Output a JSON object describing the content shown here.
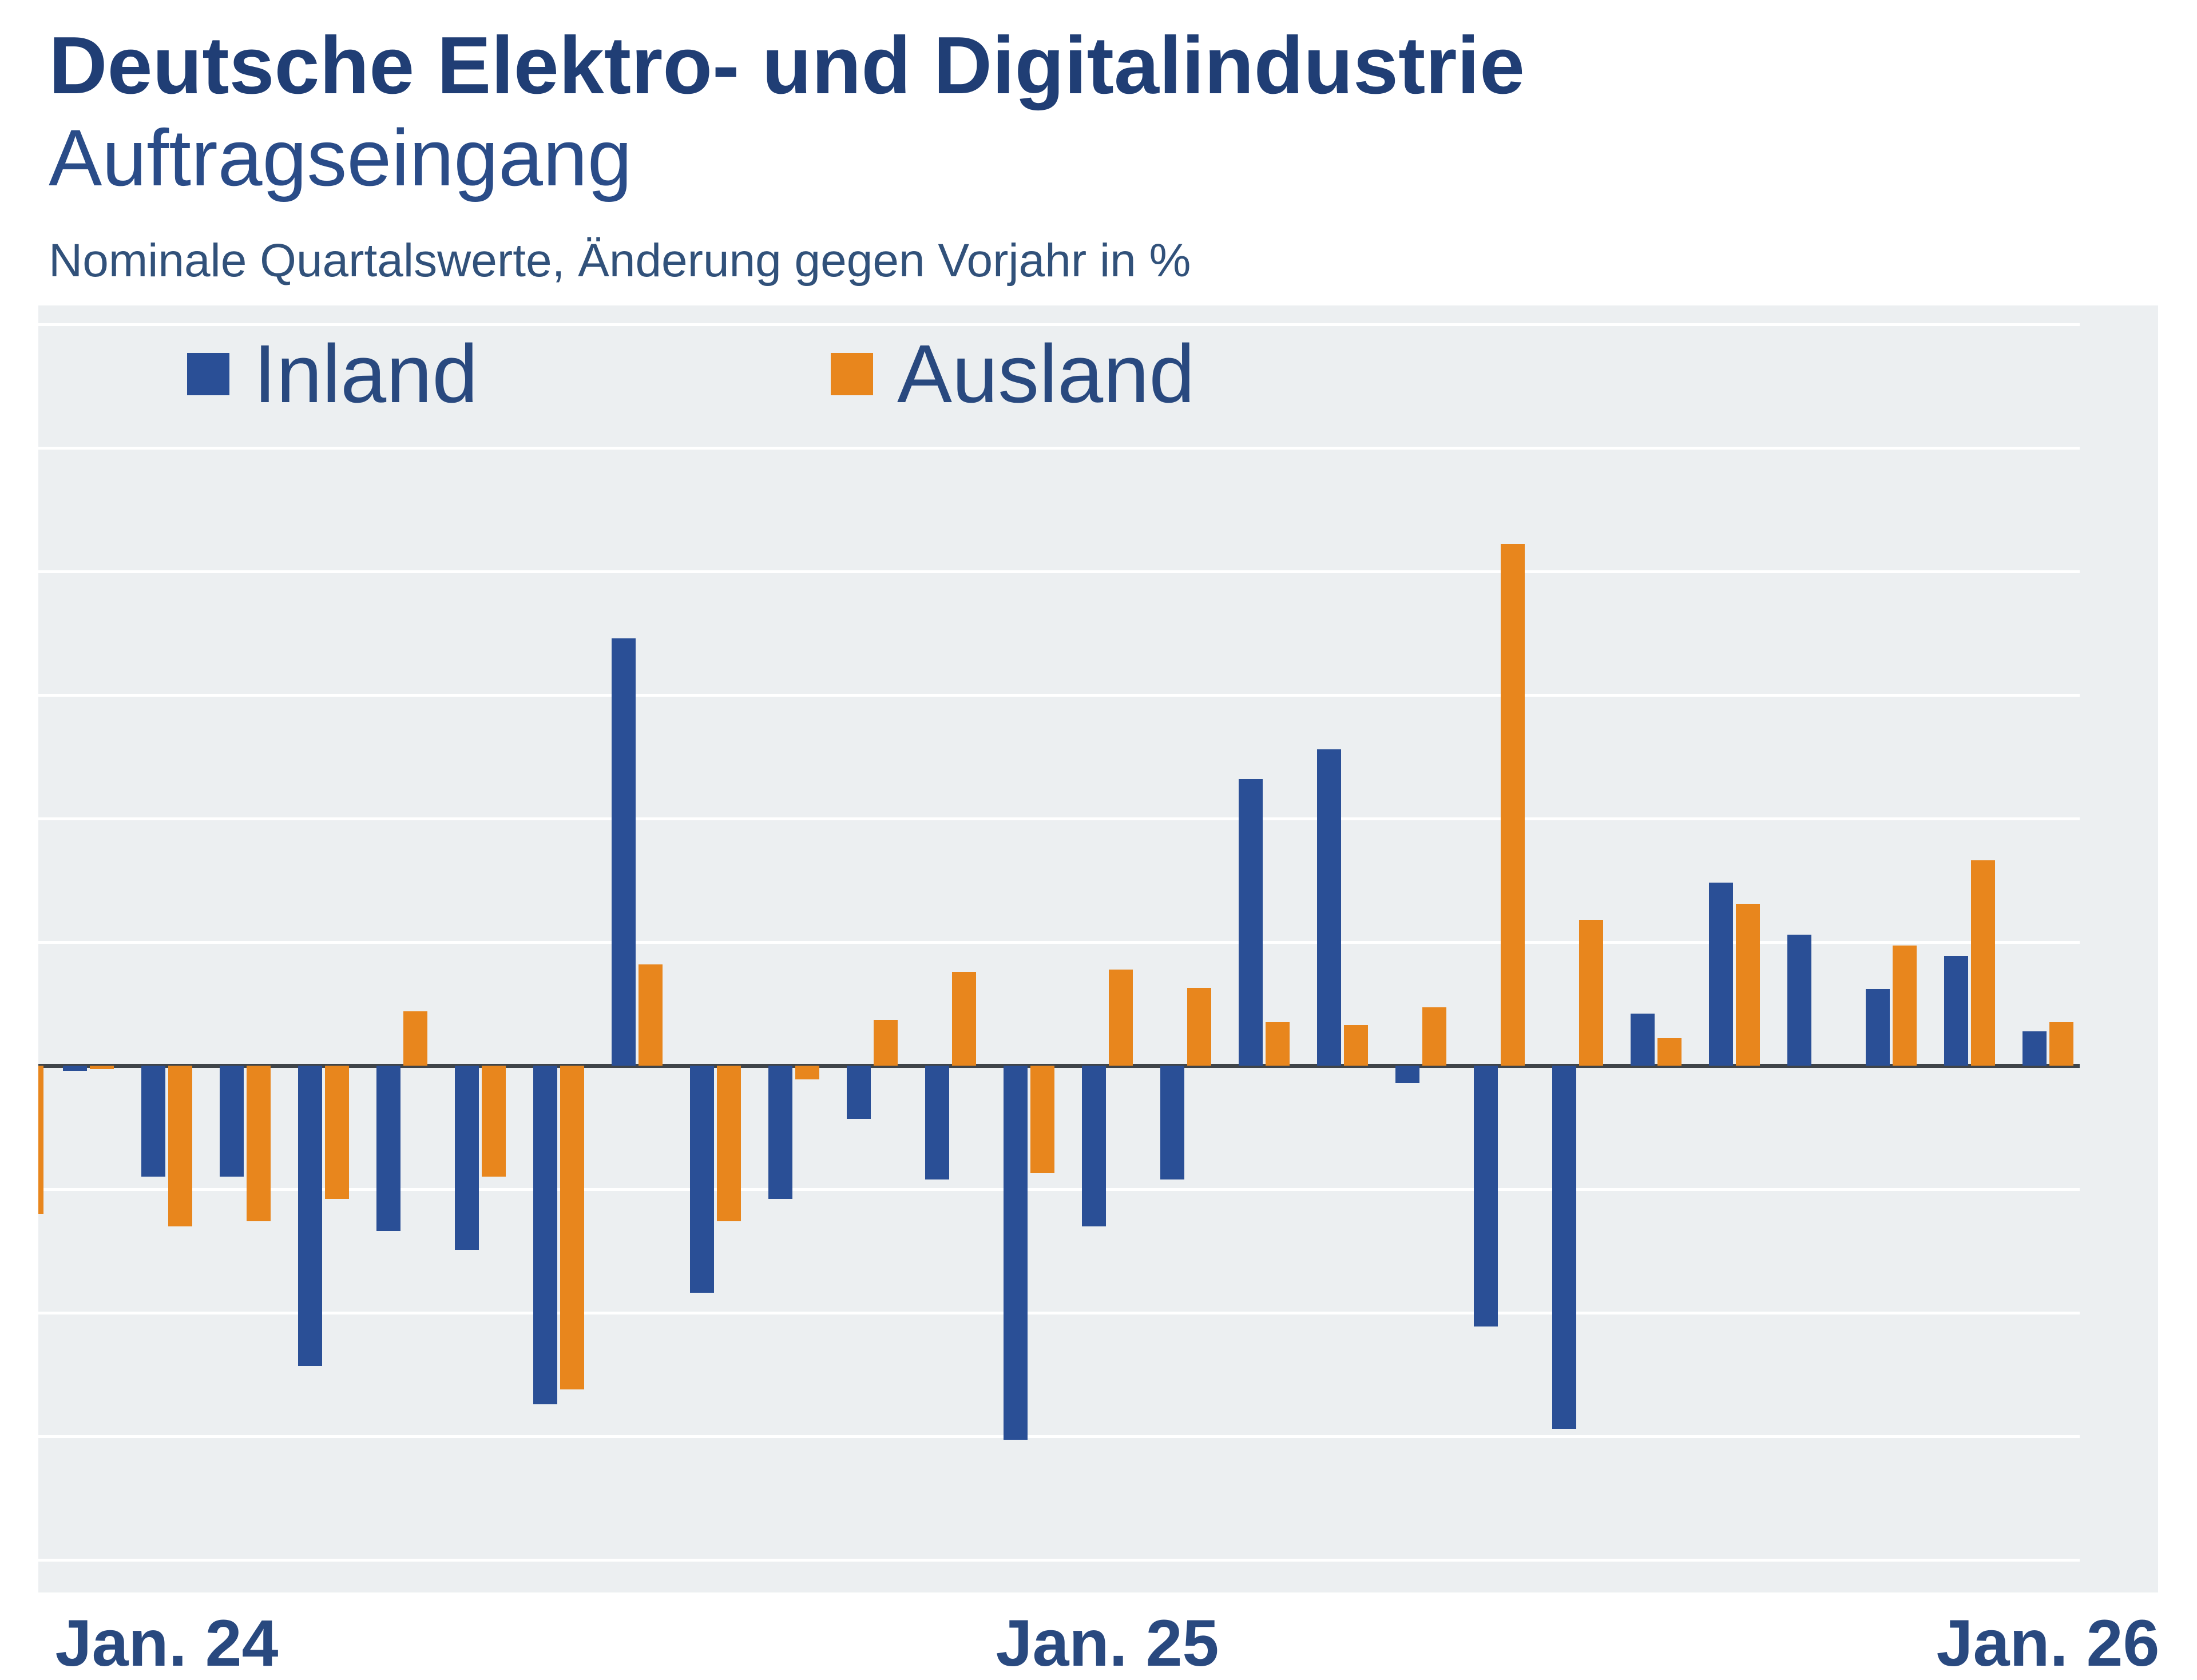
{
  "header": {
    "title": "Deutsche Elektro- und Digitalindustrie",
    "subtitle": "Auftragseingang",
    "note": "Nominale Quartalswerte, Änderung gegen Vorjahr in %"
  },
  "chart_data": {
    "type": "bar",
    "title": "Deutsche Elektro- und Digitalindustrie – Auftragseingang",
    "ylabel": "Änderung gegen Vorjahr in %",
    "xlabel": "",
    "grid": true,
    "legend_position": "top-left-inside",
    "ylim": [
      -43,
      61
    ],
    "gridline_step_pct": 10,
    "n_points": 26,
    "x_ticks": [
      {
        "label": "Jan. 24",
        "point_index": 2
      },
      {
        "label": "Jan. 25",
        "point_index": 14
      },
      {
        "label": "Jan. 26",
        "point_index": 26
      }
    ],
    "series": [
      {
        "name": "Inland",
        "values": [
          -0.4,
          -9.0,
          -9.0,
          -24.3,
          -13.4,
          -14.9,
          -27.4,
          34.6,
          -18.4,
          -10.8,
          -4.3,
          -9.2,
          -30.3,
          -13.0,
          -9.2,
          23.2,
          25.6,
          -1.4,
          -21.1,
          -29.4,
          4.2,
          14.8,
          10.6,
          6.2,
          8.9,
          2.8
        ]
      },
      {
        "name": "Ausland",
        "values": [
          -0.3,
          -13.0,
          -12.6,
          -10.8,
          4.4,
          -9.0,
          -26.2,
          8.2,
          -12.6,
          -1.1,
          3.7,
          7.6,
          -8.7,
          7.8,
          6.3,
          3.5,
          3.3,
          4.7,
          42.2,
          11.8,
          2.2,
          13.1,
          0.0,
          9.7,
          16.6,
          3.5
        ]
      }
    ],
    "left_edge_clipped_bar": {
      "series": "Ausland",
      "value_pct": -12
    },
    "colors": {
      "inland_bar": "#2a4f96",
      "ausland_bar": "#e8861d",
      "plot_bg": "#eceff1",
      "gridline": "#ffffff",
      "zero_line": "#3f4449",
      "title_text": "#203e75",
      "subtitle_text": "#2a4c88",
      "note_text": "#31517a",
      "label_text": "#29497f"
    }
  }
}
